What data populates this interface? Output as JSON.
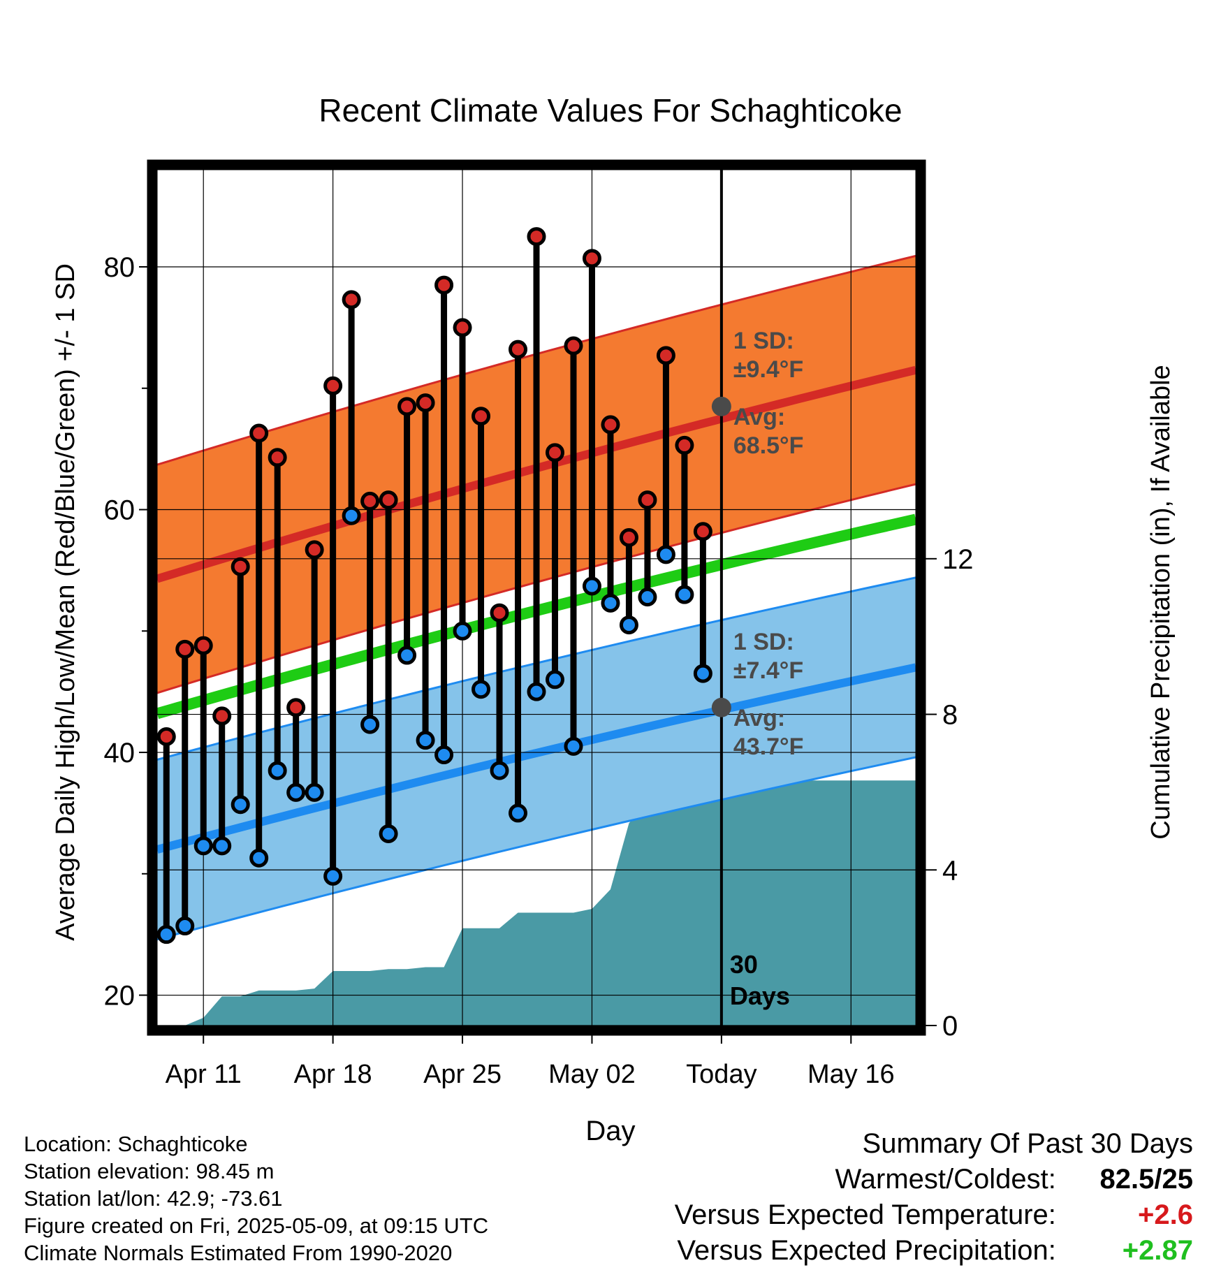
{
  "chart_data": {
    "type": "line",
    "title": "Recent Climate Values For Schaghticoke",
    "xlabel": "Day",
    "ylabel": "Average Daily High/Low/Mean (Red/Blue/Green) +/- 1 SD",
    "y2label": "Cumulative Precipitation (in), If Available",
    "ylim": [
      17.5,
      88
    ],
    "y2lim": [
      0,
      22
    ],
    "xlim": [
      -0.5,
      40.5
    ],
    "y_ticks": [
      "20",
      "40",
      "60",
      "80"
    ],
    "y2_ticks": [
      "0",
      "4",
      "8",
      "12"
    ],
    "x_ticks": [
      {
        "label": "Apr 11",
        "day": 2
      },
      {
        "label": "Apr 18",
        "day": 9
      },
      {
        "label": "Apr 25",
        "day": 16
      },
      {
        "label": "May 02",
        "day": 23
      },
      {
        "label": "Today",
        "day": 30
      },
      {
        "label": "May 16",
        "day": 37
      }
    ],
    "today_day": 30,
    "today_label": "30 Days",
    "observed": {
      "day": [
        0,
        1,
        2,
        3,
        4,
        5,
        6,
        7,
        8,
        9,
        10,
        11,
        12,
        13,
        14,
        15,
        16,
        17,
        18,
        19,
        20,
        21,
        22,
        23,
        24,
        25,
        26,
        27,
        28,
        29
      ],
      "high": [
        41.3,
        48.5,
        48.8,
        43.0,
        55.3,
        66.3,
        64.3,
        43.7,
        56.7,
        70.2,
        77.3,
        60.7,
        60.8,
        68.5,
        68.8,
        78.5,
        75.0,
        67.7,
        51.5,
        73.2,
        82.5,
        64.7,
        73.5,
        80.7,
        67.0,
        57.7,
        60.8,
        72.7,
        65.3,
        58.2
      ],
      "low": [
        25.0,
        25.7,
        32.3,
        32.3,
        35.7,
        31.3,
        38.5,
        36.7,
        36.7,
        29.8,
        59.5,
        42.3,
        33.3,
        48.0,
        41.0,
        39.8,
        50.0,
        45.2,
        38.5,
        35.0,
        45.0,
        46.0,
        40.5,
        53.7,
        52.3,
        50.5,
        52.8,
        56.3,
        53.0,
        46.5
      ]
    },
    "normals": {
      "high_avg": {
        "start": 54.3,
        "end": 71.5
      },
      "low_avg": {
        "start": 32.0,
        "end": 47.0
      },
      "mean": {
        "start": 43.2,
        "end": 59.2
      },
      "high_sd": 9.4,
      "low_sd": 7.4
    },
    "precipitation": {
      "day": [
        0,
        1,
        2,
        3,
        4,
        5,
        6,
        7,
        8,
        9,
        10,
        11,
        12,
        13,
        14,
        15,
        16,
        17,
        18,
        19,
        20,
        21,
        22,
        23,
        24,
        25,
        26,
        27,
        28,
        29,
        30,
        31,
        32,
        33,
        34,
        35,
        36,
        37,
        38,
        39,
        40
      ],
      "cumulative": [
        0,
        0,
        0.2,
        0.75,
        0.75,
        0.9,
        0.9,
        0.9,
        0.95,
        1.4,
        1.4,
        1.4,
        1.45,
        1.45,
        1.5,
        1.5,
        2.5,
        2.5,
        2.5,
        2.9,
        2.9,
        2.9,
        2.9,
        3.0,
        3.5,
        5.2,
        5.8,
        6.3,
        6.3,
        6.3,
        6.3,
        6.3,
        6.3,
        6.3,
        6.3,
        6.3,
        6.3,
        6.3,
        6.3,
        6.3,
        6.3
      ]
    },
    "annotations": {
      "high_sd_label": "1 SD:",
      "high_sd_value": "±9.4°F",
      "high_avg_label": "Avg:",
      "high_avg_value": "68.5°F",
      "high_avg_point": 68.5,
      "low_sd_label": "1 SD:",
      "low_sd_value": "±7.4°F",
      "low_avg_label": "Avg:",
      "low_avg_value": "43.7°F",
      "low_avg_point": 43.7
    },
    "colors": {
      "high_band": "#f47a30",
      "high_line": "#d42a26",
      "low_band": "#85c3ea",
      "low_line": "#1e8bf0",
      "mean_line": "#1ecc14",
      "precip_fill": "#4a9aa5",
      "high_marker": "#d42a26",
      "low_marker": "#1e8bf0",
      "annotation_text": "#4a4a4a"
    }
  },
  "info": {
    "location": "Location: Schaghticoke",
    "elevation": "Station elevation: 98.45 m",
    "latlon": "Station lat/lon: 42.9; -73.61",
    "created": "Figure created on Fri, 2025-05-09, at 09:15 UTC",
    "normals": "Climate Normals Estimated From 1990-2020"
  },
  "summary": {
    "title": "Summary Of Past 30 Days",
    "warm_cold_label": "Warmest/Coldest:",
    "warm_cold_value": "82.5/25",
    "temp_label": "Versus Expected Temperature:",
    "temp_value": "+2.6",
    "precip_label": "Versus Expected Precipitation:",
    "precip_value": "+2.87"
  }
}
